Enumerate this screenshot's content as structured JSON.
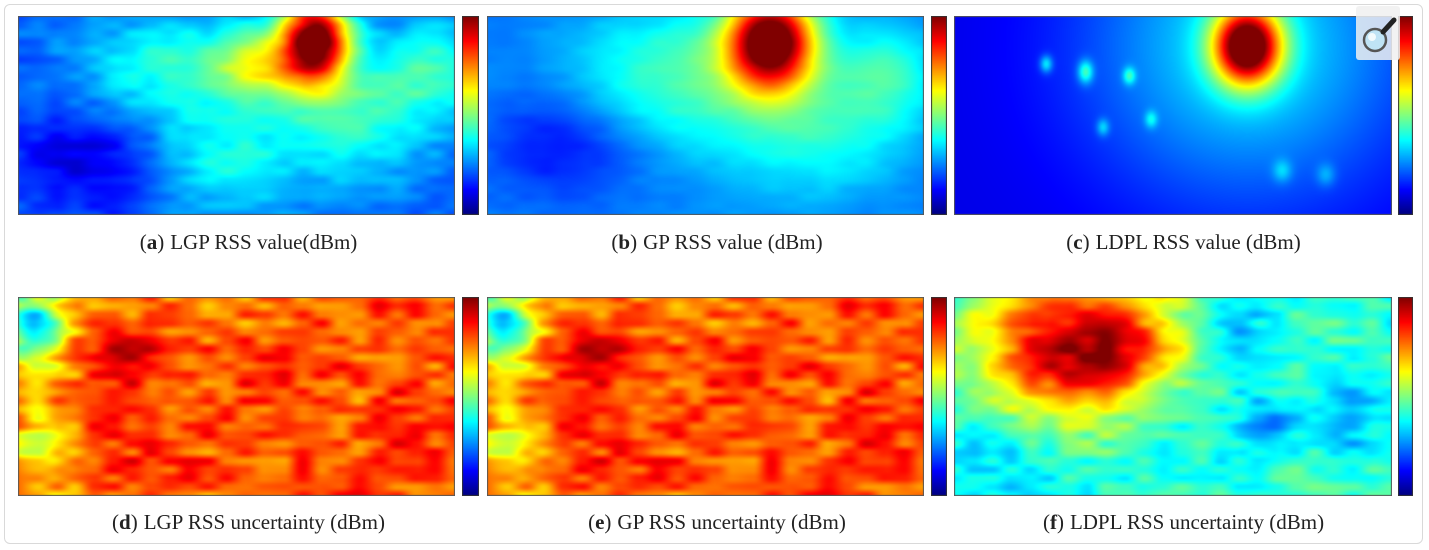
{
  "zoom_icon": "magnifier-icon",
  "chart_data": [
    {
      "type": "heatmap",
      "panel": "a",
      "caption": "LGP RSS value(dBm)",
      "colormap": "jet",
      "background_level": 0.22,
      "blobs": [
        {
          "cx": 0.68,
          "cy": 0.12,
          "sx": 0.055,
          "sy": 0.16,
          "amp": 0.82
        },
        {
          "cx": 0.55,
          "cy": 0.25,
          "sx": 0.07,
          "sy": 0.13,
          "amp": 0.28
        },
        {
          "cx": 0.78,
          "cy": 0.5,
          "sx": 0.12,
          "sy": 0.22,
          "amp": 0.2
        },
        {
          "cx": 0.35,
          "cy": 0.25,
          "sx": 0.15,
          "sy": 0.2,
          "amp": 0.18
        },
        {
          "cx": 0.48,
          "cy": 0.72,
          "sx": 0.12,
          "sy": 0.22,
          "amp": 0.16
        },
        {
          "cx": 0.15,
          "cy": 0.72,
          "sx": 0.12,
          "sy": 0.18,
          "amp": -0.14
        },
        {
          "cx": 0.95,
          "cy": 0.25,
          "sx": 0.08,
          "sy": 0.18,
          "amp": 0.18
        }
      ],
      "noise": 0.05
    },
    {
      "type": "heatmap",
      "panel": "b",
      "caption": "GP RSS value (dBm)",
      "colormap": "jet",
      "background_level": 0.25,
      "blobs": [
        {
          "cx": 0.65,
          "cy": 0.12,
          "sx": 0.07,
          "sy": 0.17,
          "amp": 0.8
        },
        {
          "cx": 0.45,
          "cy": 0.3,
          "sx": 0.18,
          "sy": 0.25,
          "amp": 0.2
        },
        {
          "cx": 0.75,
          "cy": 0.55,
          "sx": 0.14,
          "sy": 0.25,
          "amp": 0.15
        },
        {
          "cx": 0.18,
          "cy": 0.65,
          "sx": 0.12,
          "sy": 0.2,
          "amp": -0.12
        },
        {
          "cx": 0.92,
          "cy": 0.3,
          "sx": 0.08,
          "sy": 0.18,
          "amp": 0.15
        }
      ],
      "noise": 0.02
    },
    {
      "type": "heatmap",
      "panel": "c",
      "caption": "LDPL RSS value (dBm)",
      "colormap": "jet",
      "background_level": 0.1,
      "blobs": [
        {
          "cx": 0.67,
          "cy": 0.15,
          "sx": 0.055,
          "sy": 0.14,
          "amp": 0.85
        },
        {
          "cx": 0.67,
          "cy": 0.15,
          "sx": 0.26,
          "sy": 0.55,
          "amp": 0.25
        },
        {
          "cx": 0.3,
          "cy": 0.28,
          "sx": 0.012,
          "sy": 0.04,
          "amp": 0.25
        },
        {
          "cx": 0.21,
          "cy": 0.24,
          "sx": 0.01,
          "sy": 0.03,
          "amp": 0.2
        },
        {
          "cx": 0.4,
          "cy": 0.3,
          "sx": 0.01,
          "sy": 0.03,
          "amp": 0.2
        },
        {
          "cx": 0.34,
          "cy": 0.56,
          "sx": 0.01,
          "sy": 0.03,
          "amp": 0.15
        },
        {
          "cx": 0.45,
          "cy": 0.52,
          "sx": 0.01,
          "sy": 0.03,
          "amp": 0.15
        },
        {
          "cx": 0.75,
          "cy": 0.78,
          "sx": 0.015,
          "sy": 0.04,
          "amp": 0.12
        },
        {
          "cx": 0.85,
          "cy": 0.8,
          "sx": 0.015,
          "sy": 0.04,
          "amp": 0.1
        }
      ],
      "noise": 0.0
    },
    {
      "type": "heatmap",
      "panel": "d",
      "caption": "LGP RSS uncertainty (dBm)",
      "colormap": "jet",
      "background_level": 0.8,
      "blobs": [
        {
          "cx": 0.03,
          "cy": 0.15,
          "sx": 0.05,
          "sy": 0.15,
          "amp": -0.45
        },
        {
          "cx": 0.05,
          "cy": 0.75,
          "sx": 0.05,
          "sy": 0.18,
          "amp": -0.2
        },
        {
          "cx": 0.25,
          "cy": 0.28,
          "sx": 0.05,
          "sy": 0.1,
          "amp": 0.12
        }
      ],
      "noise": 0.14
    },
    {
      "type": "heatmap",
      "panel": "e",
      "caption": "GP RSS uncertainty (dBm)",
      "colormap": "jet",
      "background_level": 0.8,
      "blobs": [
        {
          "cx": 0.03,
          "cy": 0.15,
          "sx": 0.05,
          "sy": 0.15,
          "amp": -0.45
        },
        {
          "cx": 0.05,
          "cy": 0.75,
          "sx": 0.05,
          "sy": 0.18,
          "amp": -0.2
        },
        {
          "cx": 0.25,
          "cy": 0.28,
          "sx": 0.05,
          "sy": 0.1,
          "amp": 0.12
        }
      ],
      "noise": 0.14
    },
    {
      "type": "heatmap",
      "panel": "f",
      "caption": "LDPL RSS uncertainty (dBm)",
      "colormap": "jet",
      "background_level": 0.42,
      "blobs": [
        {
          "cx": 0.25,
          "cy": 0.25,
          "sx": 0.14,
          "sy": 0.25,
          "amp": 0.5
        },
        {
          "cx": 0.4,
          "cy": 0.2,
          "sx": 0.08,
          "sy": 0.18,
          "amp": 0.2
        },
        {
          "cx": 0.65,
          "cy": 0.15,
          "sx": 0.05,
          "sy": 0.12,
          "amp": -0.12
        },
        {
          "cx": 0.7,
          "cy": 0.65,
          "sx": 0.05,
          "sy": 0.15,
          "amp": -0.12
        },
        {
          "cx": 0.9,
          "cy": 0.6,
          "sx": 0.05,
          "sy": 0.18,
          "amp": -0.12
        },
        {
          "cx": 0.1,
          "cy": 0.85,
          "sx": 0.1,
          "sy": 0.2,
          "amp": -0.08
        }
      ],
      "noise": 0.1
    }
  ]
}
